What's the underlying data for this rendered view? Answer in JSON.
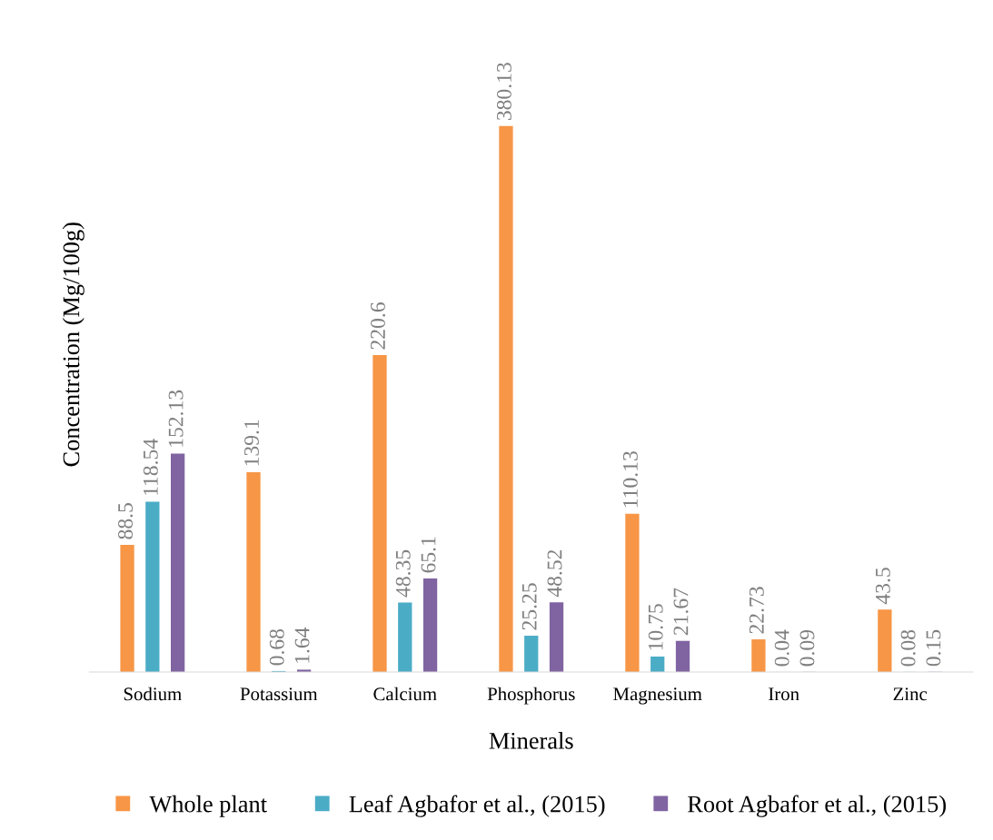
{
  "chart_data": {
    "type": "bar",
    "xlabel": "Minerals",
    "ylabel": "Concentration (Mg/100g)",
    "categories": [
      "Sodium",
      "Potassium",
      "Calcium",
      "Phosphorus",
      "Magnesium",
      "Iron",
      "Zinc"
    ],
    "series": [
      {
        "name": "Whole plant",
        "color": "#f79646",
        "values": [
          88.5,
          139.1,
          220.6,
          380.13,
          110.13,
          22.73,
          43.5
        ]
      },
      {
        "name": "Leaf Agbafor et al., (2015)",
        "color": "#4bacc6",
        "values": [
          118.54,
          0.68,
          48.35,
          25.25,
          10.75,
          0.04,
          0.08
        ]
      },
      {
        "name": "Root Agbafor et al., (2015)",
        "color": "#8064a2",
        "values": [
          152.13,
          1.64,
          65.1,
          48.52,
          21.67,
          0.09,
          0.15
        ]
      }
    ],
    "data_labels": true,
    "legend": "bottom",
    "tick_labels": "x",
    "grid": false
  }
}
